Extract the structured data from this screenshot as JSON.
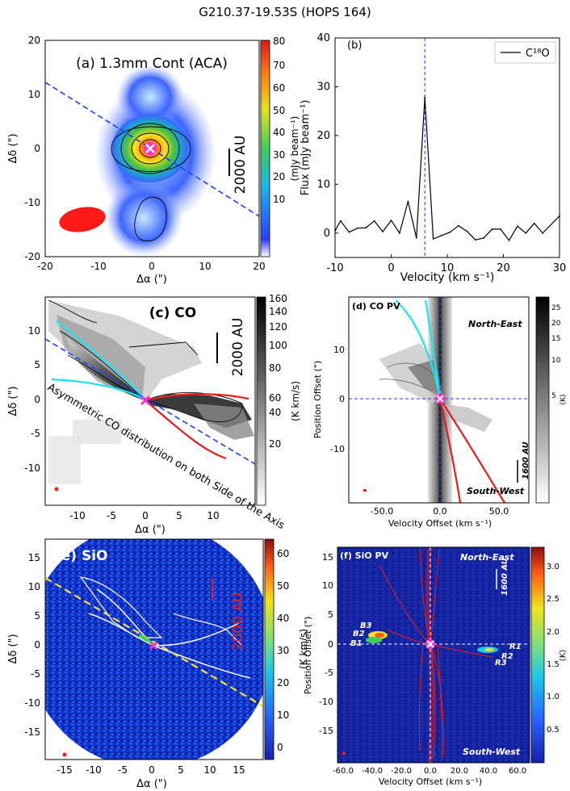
{
  "figure": {
    "title": "G210.37-19.53S (HOPS 164)"
  },
  "colors": {
    "blue_line": "#1f3fff",
    "cyan": "#19e6f0",
    "red": "#e61e1e",
    "yellow": "#f2e23a",
    "magenta": "#ff2fd2"
  },
  "panels": {
    "a": {
      "label": "(a) 1.3mm Cont (ACA)",
      "xlabel": "Δα (\")",
      "ylabel": "Δδ (\")",
      "cbar_label": "(mJy beam⁻¹)",
      "scale": "2000 AU",
      "xticks": [
        "-20",
        "-10",
        "0",
        "10",
        "20"
      ],
      "yticks": [
        "20",
        "10",
        "0",
        "-10",
        "-20"
      ],
      "cticks": [
        "80",
        "70",
        "60",
        "50",
        "40",
        "30",
        "20",
        "10"
      ]
    },
    "d": {
      "label": "(d) CO PV",
      "xlabel": "Velocity Offset (km s⁻¹)",
      "ylabel": "Position Offset (\")",
      "north": "North-East",
      "south": "South-West",
      "scale": "1600 AU",
      "cbar_unit": "(K)",
      "xticks": [
        "-50.0",
        "0.0",
        "50.0"
      ],
      "yticks": [
        "10",
        "0",
        "-10"
      ],
      "cticks": [
        "25",
        "20",
        "15",
        "10",
        "5"
      ]
    },
    "c": {
      "label": "(c) CO",
      "xlabel": "Δα (\")",
      "ylabel": "Δδ (\")",
      "scale": "2000 AU",
      "annotation": "Asymmetric CO distribution on both Side of the Axis",
      "cbar_label": "(K km/s)",
      "xticks": [
        "-10",
        "-5",
        "0",
        "5",
        "10"
      ],
      "yticks": [
        "10",
        "5",
        "0",
        "-5",
        "-10"
      ],
      "cticks": [
        "160",
        "140",
        "120",
        "100",
        "80",
        "60",
        "40",
        "20"
      ]
    },
    "e": {
      "label": "(e) SiO",
      "xlabel": "Δα (\")",
      "ylabel": "Δδ (\")",
      "scale": "2000 AU",
      "cbar_label": "(K km/s)",
      "xticks": [
        "-15",
        "-10",
        "-5",
        "0",
        "5",
        "10",
        "15"
      ],
      "yticks": [
        "15",
        "10",
        "5",
        "0",
        "-5",
        "-10",
        "-15"
      ],
      "cticks": [
        "60",
        "50",
        "40",
        "30",
        "20",
        "10",
        "0"
      ]
    },
    "f": {
      "label": "(f) SiO PV",
      "xlabel": "Velocity Offset (km s⁻¹)",
      "ylabel": "Position Offset (\")",
      "north": "North-East",
      "south": "South-West",
      "scale": "1600 AU",
      "cbar_unit": "(K)",
      "knots": [
        "B3",
        "B2",
        "B1",
        "R1",
        "R2",
        "R3"
      ],
      "xticks": [
        "-60.0",
        "-40.0",
        "-20.0",
        "0.0",
        "20.0",
        "40.0",
        "60.0"
      ],
      "yticks": [
        "15",
        "10",
        "5",
        "0",
        "-5",
        "-10",
        "-15"
      ],
      "cticks": [
        "3.0",
        "2.5",
        "2.0",
        "1.5",
        "1.0",
        "0.5"
      ]
    }
  },
  "chart_data": {
    "type": "line",
    "title": "(b)",
    "xlabel": "Velocity  (km s⁻¹)",
    "ylabel": "Flux (mJy beam⁻¹)",
    "legend": "C¹⁸O",
    "xlim": [
      -10,
      30
    ],
    "ylim": [
      -5,
      40
    ],
    "xticks": [
      "-10",
      "0",
      "10",
      "20",
      "30"
    ],
    "yticks": [
      "40",
      "30",
      "20",
      "10",
      "0"
    ],
    "marker_velocity": 6,
    "x": [
      -10,
      -9,
      -7.5,
      -6,
      -4.5,
      -3,
      -1.5,
      0,
      1.5,
      3,
      4.5,
      6,
      7.5,
      9,
      10.5,
      12,
      13.5,
      15,
      16.5,
      18,
      19.5,
      21,
      22.5,
      24,
      25.5,
      27,
      30
    ],
    "y": [
      0.5,
      2.5,
      0.2,
      1.0,
      1.1,
      2.5,
      0.3,
      2.6,
      0.0,
      6.5,
      -1.0,
      27.8,
      -1.2,
      -0.5,
      0.2,
      1.5,
      0.4,
      -1.4,
      -1.0,
      0.8,
      0.8,
      -1.5,
      1.4,
      0.0,
      2.0,
      0.0,
      3.5
    ]
  }
}
